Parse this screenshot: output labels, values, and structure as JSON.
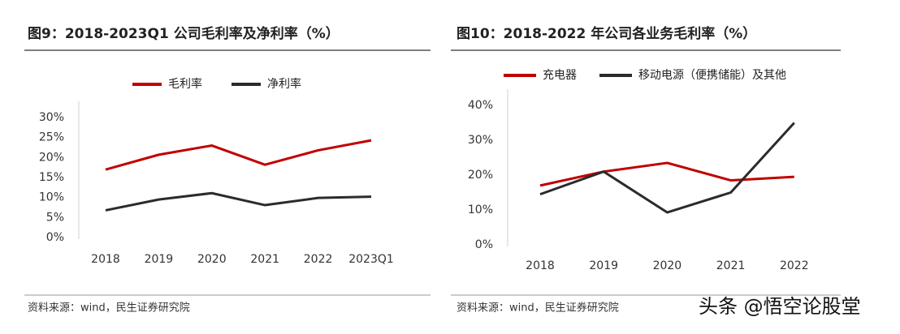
{
  "chart_data": [
    {
      "type": "line",
      "title": "图9：2018-2023Q1 公司毛利率及净利率（%）",
      "categories": [
        "2018",
        "2019",
        "2020",
        "2021",
        "2022",
        "2023Q1"
      ],
      "series": [
        {
          "name": "毛利率",
          "color": "#c00000",
          "values": [
            17,
            20.7,
            23,
            18.2,
            21.8,
            24.3
          ]
        },
        {
          "name": "净利率",
          "color": "#2b2b2b",
          "values": [
            6.8,
            9.5,
            11.1,
            8.1,
            9.9,
            10.2
          ]
        }
      ],
      "ylim": [
        0,
        30
      ],
      "yticks": [
        {
          "value": 0,
          "label": "0%"
        },
        {
          "value": 5,
          "label": "5%"
        },
        {
          "value": 10,
          "label": "10%"
        },
        {
          "value": 15,
          "label": "15%"
        },
        {
          "value": 20,
          "label": "20%"
        },
        {
          "value": 25,
          "label": "25%"
        },
        {
          "value": 30,
          "label": "30%"
        }
      ],
      "source": "资料来源：wind，民生证券研究院"
    },
    {
      "type": "line",
      "title": "图10：2018-2022 年公司各业务毛利率（%）",
      "categories": [
        "2018",
        "2019",
        "2020",
        "2021",
        "2022"
      ],
      "series": [
        {
          "name": "充电器",
          "color": "#c00000",
          "values": [
            17,
            21,
            23.5,
            18.5,
            19.5
          ]
        },
        {
          "name": "移动电源（便携储能）及其他",
          "color": "#2b2b2b",
          "values": [
            14.5,
            21,
            9.3,
            15,
            35
          ]
        }
      ],
      "ylim": [
        0,
        40
      ],
      "yticks": [
        {
          "value": 0,
          "label": "0%"
        },
        {
          "value": 10,
          "label": "10%"
        },
        {
          "value": 20,
          "label": "20%"
        },
        {
          "value": 30,
          "label": "30%"
        },
        {
          "value": 40,
          "label": "40%"
        }
      ],
      "source": "资料来源：wind，民生证券研究院"
    }
  ],
  "watermark": "头条 @悟空论股堂"
}
